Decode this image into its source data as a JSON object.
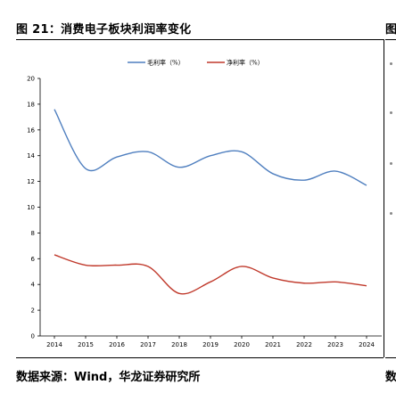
{
  "figure": {
    "title": "图 21：消费电子板块利润率变化",
    "next_title": "图",
    "source": "数据来源：Wind，华龙证券研究所",
    "next_source": "数"
  },
  "chart_data": {
    "type": "line",
    "x": [
      "2014",
      "2015",
      "2016",
      "2017",
      "2018",
      "2019",
      "2020",
      "2021",
      "2022",
      "2023",
      "2024"
    ],
    "series": [
      {
        "name": "毛利率（%）",
        "color": "#4f7fbf",
        "values": [
          17.6,
          13.0,
          13.9,
          14.3,
          13.1,
          14.0,
          14.3,
          12.6,
          12.1,
          12.8,
          11.7
        ]
      },
      {
        "name": "净利率（%）",
        "color": "#c0392b",
        "values": [
          6.3,
          5.5,
          5.5,
          5.4,
          3.3,
          4.2,
          5.4,
          4.5,
          4.1,
          4.2,
          3.9
        ]
      }
    ],
    "ylim": [
      0,
      20
    ],
    "yticks": [
      "0",
      "2",
      "4",
      "6",
      "8",
      "10",
      "12",
      "14",
      "16",
      "18",
      "20"
    ],
    "grid": false,
    "legend": "top-center",
    "xlabel": "",
    "ylabel": ""
  }
}
